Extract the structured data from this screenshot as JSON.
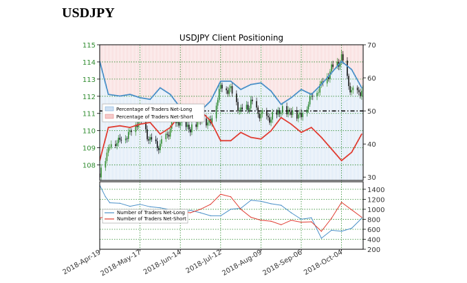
{
  "page_title": "USDJPY",
  "chart_data": [
    {
      "type": "line",
      "title": "USDJPY Client Positioning",
      "x_ticks": [
        "2018-Apr-19",
        "2018-May-17",
        "2018-Jun-14",
        "2018-Jul-12",
        "2018-Aug-09",
        "2018-Sep-06",
        "2018-Oct-04"
      ],
      "x_range": [
        "2018-Apr-19",
        "2018-Oct-19"
      ],
      "grid": true,
      "legend_position": "middle-left",
      "price_axis": {
        "side": "left",
        "ylim": [
          107.1,
          115
        ],
        "ticks": [
          "108",
          "109",
          "110",
          "111",
          "112",
          "113",
          "114",
          "115"
        ],
        "color": "#2e8b2e"
      },
      "percent_axis": {
        "side": "right",
        "ylim": [
          29,
          70
        ],
        "ticks": [
          "30",
          "40",
          "50",
          "60",
          "70"
        ]
      },
      "reference_line": 50,
      "price_candles": {
        "color_up": "#2e8b2e",
        "color_down": "#111111",
        "x": [
          "2018-04-19",
          "2018-04-26",
          "2018-05-03",
          "2018-05-10",
          "2018-05-17",
          "2018-05-24",
          "2018-05-31",
          "2018-06-07",
          "2018-06-14",
          "2018-06-21",
          "2018-06-28",
          "2018-07-05",
          "2018-07-12",
          "2018-07-19",
          "2018-07-26",
          "2018-08-02",
          "2018-08-09",
          "2018-08-16",
          "2018-08-23",
          "2018-08-30",
          "2018-09-06",
          "2018-09-13",
          "2018-09-20",
          "2018-09-27",
          "2018-10-04",
          "2018-10-11",
          "2018-10-18"
        ],
        "close": [
          107.5,
          109.2,
          109.5,
          109.9,
          110.8,
          109.4,
          109.1,
          110.1,
          110.6,
          110.1,
          110.7,
          110.5,
          112.6,
          112.4,
          111.1,
          111.6,
          110.9,
          110.7,
          111.2,
          111.1,
          110.9,
          112.0,
          112.7,
          113.6,
          114.2,
          112.2,
          112.3
        ]
      },
      "series": [
        {
          "name": "Percentage of Traders Net-Long",
          "color": "#4a90c8",
          "x": [
            "2018-04-19",
            "2018-04-25",
            "2018-05-03",
            "2018-05-10",
            "2018-05-17",
            "2018-05-24",
            "2018-05-31",
            "2018-06-07",
            "2018-06-14",
            "2018-06-21",
            "2018-06-28",
            "2018-07-05",
            "2018-07-12",
            "2018-07-19",
            "2018-07-26",
            "2018-08-02",
            "2018-08-09",
            "2018-08-16",
            "2018-08-23",
            "2018-08-30",
            "2018-09-06",
            "2018-09-13",
            "2018-09-20",
            "2018-09-27",
            "2018-10-04",
            "2018-10-11",
            "2018-10-18"
          ],
          "values": [
            65,
            55,
            54.5,
            55,
            54,
            53.5,
            57,
            55,
            51,
            51.5,
            50,
            53,
            59,
            59,
            56.5,
            58,
            58.5,
            56,
            52,
            54,
            56.5,
            55,
            58,
            61.5,
            65,
            62.5,
            57
          ]
        },
        {
          "name": "Percentage of Traders Net-Short",
          "color": "#e03c31",
          "x": [
            "2018-04-19",
            "2018-04-25",
            "2018-05-03",
            "2018-05-10",
            "2018-05-17",
            "2018-05-24",
            "2018-05-31",
            "2018-06-07",
            "2018-06-14",
            "2018-06-21",
            "2018-06-28",
            "2018-07-05",
            "2018-07-12",
            "2018-07-19",
            "2018-07-26",
            "2018-08-02",
            "2018-08-09",
            "2018-08-16",
            "2018-08-23",
            "2018-08-30",
            "2018-09-06",
            "2018-09-13",
            "2018-09-20",
            "2018-09-27",
            "2018-10-04",
            "2018-10-11",
            "2018-10-18"
          ],
          "values": [
            35,
            45,
            45.5,
            45,
            46,
            46.5,
            43,
            45,
            49,
            48.5,
            50,
            47,
            41,
            41,
            43.5,
            42,
            41.5,
            44,
            48,
            46,
            43.5,
            45,
            42,
            38.5,
            35,
            37.5,
            43
          ]
        }
      ]
    },
    {
      "type": "line",
      "x_ticks": [
        "2018-Apr-19",
        "2018-May-17",
        "2018-Jun-14",
        "2018-Jul-12",
        "2018-Aug-09",
        "2018-Sep-06",
        "2018-Oct-04"
      ],
      "x_range": [
        "2018-Apr-19",
        "2018-Oct-19"
      ],
      "grid": true,
      "legend_position": "middle-left",
      "ylim": [
        200,
        1550
      ],
      "y_axis_side": "right",
      "y_ticks": [
        "200",
        "400",
        "600",
        "800",
        "1000",
        "1200",
        "1400"
      ],
      "series": [
        {
          "name": "Number of Traders Net-Long",
          "color": "#4a90c8",
          "x": [
            "2018-04-19",
            "2018-04-23",
            "2018-04-26",
            "2018-05-03",
            "2018-05-10",
            "2018-05-17",
            "2018-05-24",
            "2018-05-31",
            "2018-06-07",
            "2018-06-14",
            "2018-06-21",
            "2018-06-28",
            "2018-07-05",
            "2018-07-12",
            "2018-07-19",
            "2018-07-26",
            "2018-08-02",
            "2018-08-09",
            "2018-08-16",
            "2018-08-23",
            "2018-08-30",
            "2018-09-06",
            "2018-09-13",
            "2018-09-20",
            "2018-09-27",
            "2018-10-04",
            "2018-10-11",
            "2018-10-18"
          ],
          "values": [
            1480,
            1250,
            1130,
            1120,
            1060,
            1100,
            1050,
            1030,
            990,
            910,
            980,
            930,
            870,
            870,
            1000,
            1020,
            1180,
            1160,
            1110,
            1080,
            930,
            800,
            830,
            420,
            580,
            560,
            620,
            820
          ]
        },
        {
          "name": "Number of Traders Net-Short",
          "color": "#e03c31",
          "x": [
            "2018-04-19",
            "2018-04-23",
            "2018-04-26",
            "2018-05-03",
            "2018-05-10",
            "2018-05-17",
            "2018-05-24",
            "2018-05-31",
            "2018-06-07",
            "2018-06-14",
            "2018-06-21",
            "2018-06-28",
            "2018-07-05",
            "2018-07-12",
            "2018-07-19",
            "2018-07-26",
            "2018-08-02",
            "2018-08-09",
            "2018-08-16",
            "2018-08-23",
            "2018-08-30",
            "2018-09-06",
            "2018-09-13",
            "2018-09-20",
            "2018-09-27",
            "2018-10-04",
            "2018-10-11",
            "2018-10-18"
          ],
          "values": [
            820,
            860,
            950,
            920,
            940,
            900,
            930,
            920,
            880,
            950,
            930,
            1000,
            1100,
            1300,
            1250,
            1000,
            840,
            780,
            760,
            690,
            780,
            740,
            750,
            560,
            820,
            1140,
            990,
            840
          ]
        }
      ]
    }
  ]
}
